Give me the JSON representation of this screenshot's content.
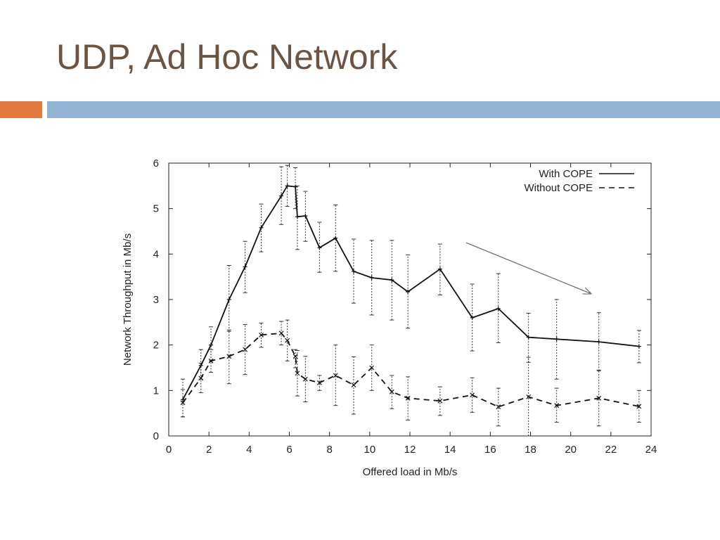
{
  "slide": {
    "title": "UDP, Ad Hoc Network",
    "accent_orange": "#e07a3f",
    "accent_blue": "#93b4d4"
  },
  "chart_data": {
    "type": "line",
    "xlabel": "Offered load in Mb/s",
    "ylabel": "Network Throughput in Mb/s",
    "xlim": [
      0,
      24
    ],
    "ylim": [
      0,
      6
    ],
    "xticks": [
      0,
      2,
      4,
      6,
      8,
      10,
      12,
      14,
      16,
      18,
      20,
      22,
      24
    ],
    "yticks": [
      0,
      1,
      2,
      3,
      4,
      5,
      6
    ],
    "grid": false,
    "legend_position": "top-right",
    "series": [
      {
        "name": "With COPE",
        "style": "solid",
        "points": [
          {
            "x": 0.7,
            "y": 0.8,
            "lo": 0.42,
            "hi": 1.25
          },
          {
            "x": 1.6,
            "y": 1.55,
            "lo": 1.25,
            "hi": 1.9
          },
          {
            "x": 2.1,
            "y": 2.0,
            "lo": 1.65,
            "hi": 2.4
          },
          {
            "x": 3.0,
            "y": 3.0,
            "lo": 2.3,
            "hi": 3.75
          },
          {
            "x": 3.8,
            "y": 3.72,
            "lo": 3.15,
            "hi": 4.28
          },
          {
            "x": 4.6,
            "y": 4.58,
            "lo": 4.05,
            "hi": 5.1
          },
          {
            "x": 5.6,
            "y": 5.28,
            "lo": 4.65,
            "hi": 5.92
          },
          {
            "x": 5.9,
            "y": 5.5,
            "lo": 5.05,
            "hi": 5.95
          },
          {
            "x": 6.3,
            "y": 5.48,
            "lo": 5.0,
            "hi": 5.9
          },
          {
            "x": 6.4,
            "y": 4.82,
            "lo": 4.1,
            "hi": 5.5
          },
          {
            "x": 6.8,
            "y": 4.84,
            "lo": 4.28,
            "hi": 5.38
          },
          {
            "x": 7.5,
            "y": 4.14,
            "lo": 3.6,
            "hi": 4.7
          },
          {
            "x": 8.3,
            "y": 4.35,
            "lo": 3.62,
            "hi": 5.08
          },
          {
            "x": 9.2,
            "y": 3.62,
            "lo": 2.92,
            "hi": 4.33
          },
          {
            "x": 10.1,
            "y": 3.48,
            "lo": 2.66,
            "hi": 4.3
          },
          {
            "x": 11.1,
            "y": 3.43,
            "lo": 2.55,
            "hi": 4.3
          },
          {
            "x": 11.9,
            "y": 3.17,
            "lo": 2.37,
            "hi": 3.98
          },
          {
            "x": 13.5,
            "y": 3.67,
            "lo": 3.1,
            "hi": 4.22
          },
          {
            "x": 15.1,
            "y": 2.6,
            "lo": 1.87,
            "hi": 3.34
          },
          {
            "x": 16.4,
            "y": 2.8,
            "lo": 2.05,
            "hi": 3.57
          },
          {
            "x": 17.9,
            "y": 2.17,
            "lo": 1.62,
            "hi": 2.7
          },
          {
            "x": 19.3,
            "y": 2.13,
            "lo": 1.25,
            "hi": 3.0
          },
          {
            "x": 21.4,
            "y": 2.07,
            "lo": 1.43,
            "hi": 2.71
          },
          {
            "x": 23.4,
            "y": 1.97,
            "lo": 1.61,
            "hi": 2.32
          }
        ]
      },
      {
        "name": "Without COPE",
        "style": "dashed",
        "points": [
          {
            "x": 0.7,
            "y": 0.73,
            "lo": 0.42,
            "hi": 1.02
          },
          {
            "x": 1.6,
            "y": 1.27,
            "lo": 0.95,
            "hi": 1.6
          },
          {
            "x": 2.1,
            "y": 1.65,
            "lo": 1.4,
            "hi": 1.9
          },
          {
            "x": 3.0,
            "y": 1.75,
            "lo": 1.15,
            "hi": 2.33
          },
          {
            "x": 3.8,
            "y": 1.9,
            "lo": 1.35,
            "hi": 2.45
          },
          {
            "x": 4.6,
            "y": 2.22,
            "lo": 1.95,
            "hi": 2.48
          },
          {
            "x": 5.6,
            "y": 2.26,
            "lo": 2.0,
            "hi": 2.52
          },
          {
            "x": 5.9,
            "y": 2.1,
            "lo": 1.65,
            "hi": 2.55
          },
          {
            "x": 6.3,
            "y": 1.75,
            "lo": 1.5,
            "hi": 1.9
          },
          {
            "x": 6.4,
            "y": 1.38,
            "lo": 0.88,
            "hi": 1.88
          },
          {
            "x": 6.8,
            "y": 1.25,
            "lo": 0.75,
            "hi": 1.75
          },
          {
            "x": 7.5,
            "y": 1.17,
            "lo": 1.0,
            "hi": 1.33
          },
          {
            "x": 8.3,
            "y": 1.33,
            "lo": 0.67,
            "hi": 2.0
          },
          {
            "x": 9.2,
            "y": 1.12,
            "lo": 0.48,
            "hi": 1.74
          },
          {
            "x": 10.1,
            "y": 1.5,
            "lo": 1.0,
            "hi": 2.0
          },
          {
            "x": 11.1,
            "y": 0.97,
            "lo": 0.6,
            "hi": 1.33
          },
          {
            "x": 11.9,
            "y": 0.83,
            "lo": 0.35,
            "hi": 1.3
          },
          {
            "x": 13.5,
            "y": 0.77,
            "lo": 0.45,
            "hi": 1.08
          },
          {
            "x": 15.1,
            "y": 0.9,
            "lo": 0.52,
            "hi": 1.28
          },
          {
            "x": 16.4,
            "y": 0.64,
            "lo": 0.22,
            "hi": 1.05
          },
          {
            "x": 17.9,
            "y": 0.86,
            "lo": 0.0,
            "hi": 1.73
          },
          {
            "x": 19.3,
            "y": 0.67,
            "lo": 0.3,
            "hi": 1.05
          },
          {
            "x": 21.4,
            "y": 0.83,
            "lo": 0.22,
            "hi": 1.45
          },
          {
            "x": 23.4,
            "y": 0.65,
            "lo": 0.3,
            "hi": 1.0
          }
        ]
      }
    ],
    "annotations": [
      {
        "type": "arrow",
        "from": [
          14.8,
          4.25
        ],
        "to": [
          21.0,
          3.13
        ],
        "color": "#666666"
      }
    ]
  }
}
